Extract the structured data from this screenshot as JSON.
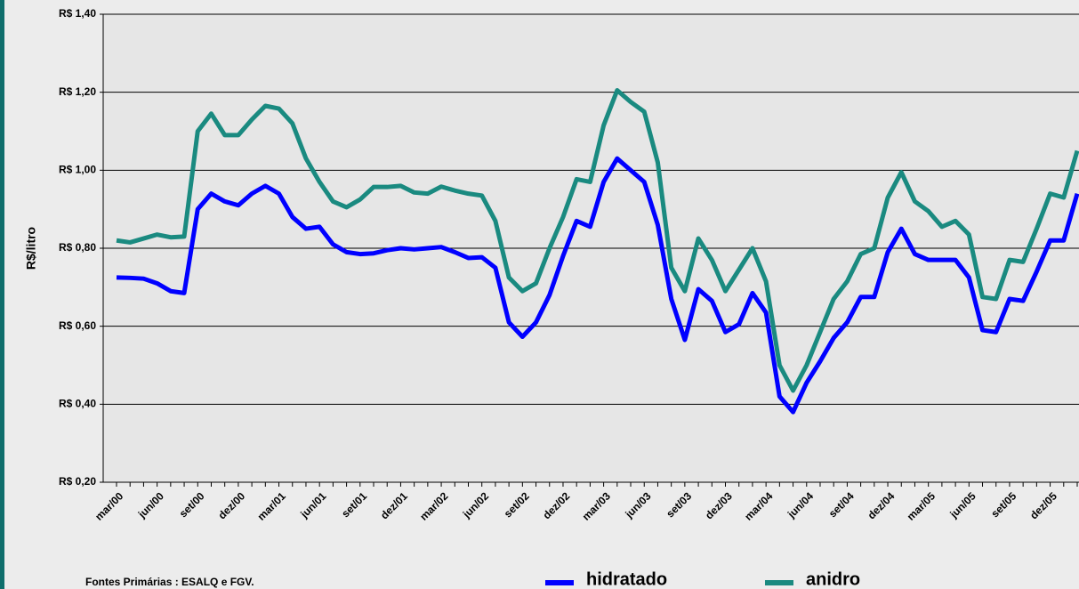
{
  "chart_data": {
    "type": "line",
    "y_label": "R$/litro",
    "source": "Fontes Primárias : ESALQ e FGV.",
    "categories": [
      "mar/00",
      null,
      null,
      "jun/00",
      null,
      null,
      "set/00",
      null,
      null,
      "dez/00",
      null,
      null,
      "mar/01",
      null,
      null,
      "jun/01",
      null,
      null,
      "set/01",
      null,
      null,
      "dez/01",
      null,
      null,
      "mar/02",
      null,
      null,
      "jun/02",
      null,
      null,
      "set/02",
      null,
      null,
      "dez/02",
      null,
      null,
      "mar/03",
      null,
      null,
      "jun/03",
      null,
      null,
      "set/03",
      null,
      null,
      "dez/03",
      null,
      null,
      "mar/04",
      null,
      null,
      "jun/04",
      null,
      null,
      "set/04",
      null,
      null,
      "dez/04",
      null,
      null,
      "mar/05",
      null,
      null,
      "jun/05",
      null,
      null,
      "set/05",
      null,
      null,
      "dez/05",
      null,
      null
    ],
    "series": [
      {
        "name": "hidratado",
        "color": "#0000ff",
        "values": [
          0.725,
          0.724,
          0.722,
          0.71,
          0.69,
          0.685,
          0.9,
          0.94,
          0.92,
          0.91,
          0.94,
          0.96,
          0.94,
          0.88,
          0.85,
          0.855,
          0.81,
          0.79,
          0.785,
          0.787,
          0.795,
          0.8,
          0.797,
          0.8,
          0.803,
          0.79,
          0.775,
          0.777,
          0.75,
          0.61,
          0.573,
          0.61,
          0.68,
          0.78,
          0.87,
          0.855,
          0.97,
          1.03,
          1.0,
          0.97,
          0.86,
          0.67,
          0.565,
          0.695,
          0.665,
          0.585,
          0.605,
          0.685,
          0.635,
          0.42,
          0.38,
          0.455,
          0.51,
          0.57,
          0.61,
          0.675,
          0.675,
          0.79,
          0.85,
          0.785,
          0.77,
          0.77,
          0.77,
          0.725,
          0.59,
          0.585,
          0.67,
          0.665,
          0.74,
          0.82,
          0.82,
          0.94
        ]
      },
      {
        "name": "anidro",
        "color": "#1a8a80",
        "values": [
          0.82,
          0.815,
          0.825,
          0.835,
          0.828,
          0.83,
          1.1,
          1.145,
          1.09,
          1.09,
          1.13,
          1.165,
          1.158,
          1.12,
          1.03,
          0.97,
          0.92,
          0.905,
          0.925,
          0.957,
          0.957,
          0.96,
          0.943,
          0.94,
          0.958,
          0.948,
          0.94,
          0.935,
          0.87,
          0.725,
          0.69,
          0.71,
          0.8,
          0.88,
          0.977,
          0.97,
          1.115,
          1.205,
          1.175,
          1.15,
          1.02,
          0.75,
          0.69,
          0.825,
          0.77,
          0.69,
          0.745,
          0.8,
          0.715,
          0.5,
          0.435,
          0.5,
          0.585,
          0.67,
          0.715,
          0.785,
          0.8,
          0.93,
          0.995,
          0.92,
          0.895,
          0.855,
          0.87,
          0.835,
          0.675,
          0.67,
          0.77,
          0.765,
          0.85,
          0.94,
          0.93,
          1.05
        ]
      }
    ],
    "ylim": [
      0.2,
      1.4
    ],
    "yticks": [
      {
        "value": 0.2,
        "label": "R$ 0,20"
      },
      {
        "value": 0.4,
        "label": "R$ 0,40"
      },
      {
        "value": 0.6,
        "label": "R$ 0,60"
      },
      {
        "value": 0.8,
        "label": "R$ 0,80"
      },
      {
        "value": 1.0,
        "label": "R$ 1,00"
      },
      {
        "value": 1.2,
        "label": "R$ 1,20"
      },
      {
        "value": 1.4,
        "label": "R$ 1,40"
      }
    ],
    "grid": true
  }
}
